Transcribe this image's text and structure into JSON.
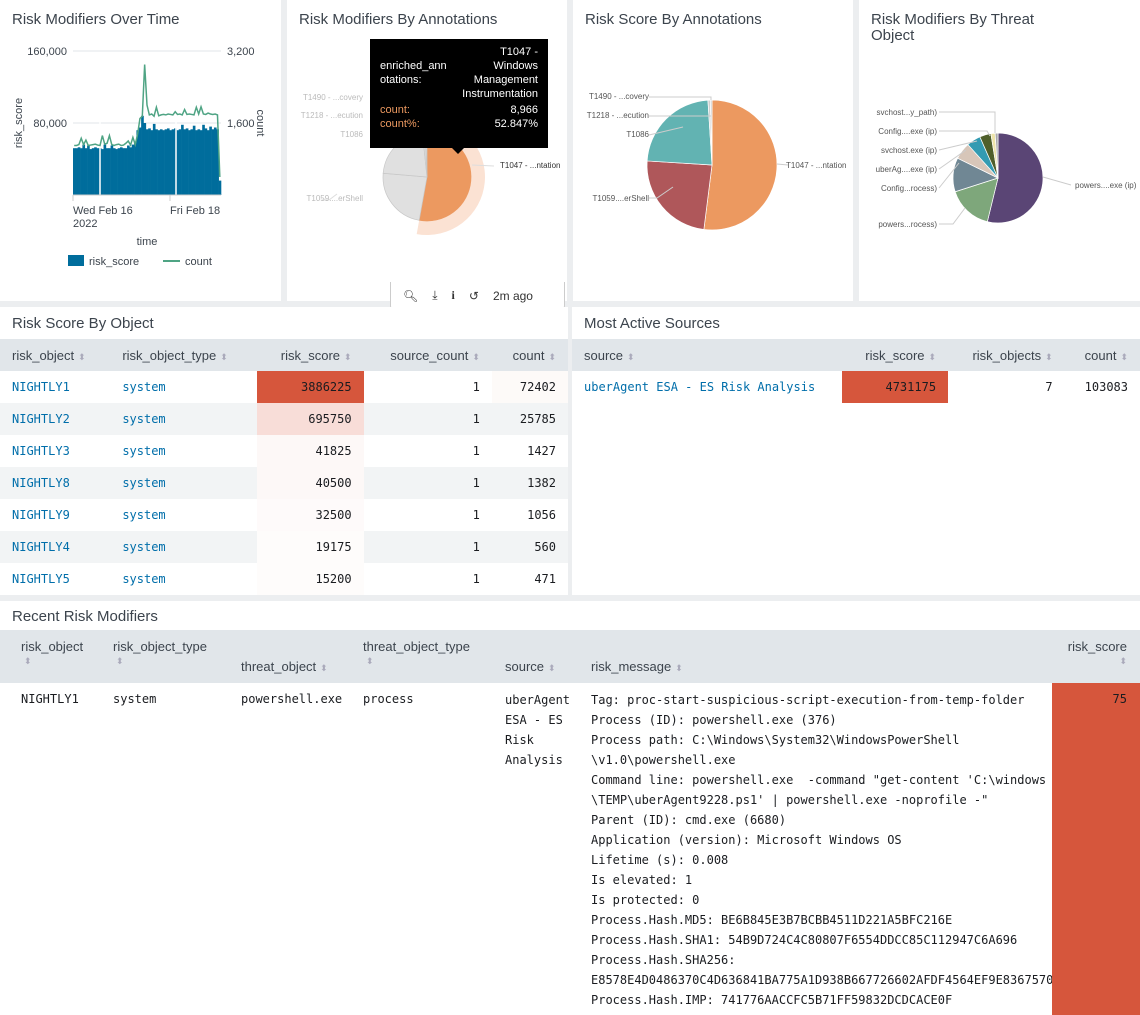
{
  "panels": {
    "p1": {
      "title": "Risk Modifiers Over Time"
    },
    "p2": {
      "title": "Risk Modifiers By Annotations"
    },
    "p3": {
      "title": "Risk Score By Annotations"
    },
    "p4": {
      "title": "Risk Modifiers By Threat Object"
    }
  },
  "chart_data": [
    {
      "type": "bar+line",
      "title": "Risk Modifiers Over Time",
      "xlabel": "time",
      "ylabel": "risk_score",
      "y2label": "count",
      "ylim": [
        0,
        160000
      ],
      "y2lim": [
        0,
        3200
      ],
      "yticks": [
        "160,000",
        "80,000"
      ],
      "y2ticks": [
        "3,200",
        "1,600"
      ],
      "xticks": [
        "Wed Feb 16",
        "2022",
        "Fri Feb 18"
      ],
      "legend": [
        "risk_score",
        "count"
      ],
      "legend_position": "bottom",
      "colors": {
        "risk_score": "#006d9c",
        "count": "#4fa484"
      },
      "series": [
        {
          "name": "risk_score",
          "values": [
            52000,
            52000,
            53000,
            52000,
            56000,
            52000,
            55000,
            51000,
            52000,
            53000,
            52000,
            52000,
            51000,
            56000,
            52000,
            52000,
            55000,
            52000,
            51000,
            52000,
            53000,
            52000,
            52000,
            55000,
            53000,
            56000,
            58000,
            72000,
            75000,
            88000,
            80000,
            73000,
            74000,
            72000,
            79000,
            73000,
            72000,
            73000,
            72000,
            73000,
            74000,
            72000,
            73000,
            74000,
            72000,
            73000,
            78000,
            73000,
            74000,
            72000,
            73000,
            77000,
            72000,
            73000,
            72000,
            78000,
            74000,
            72000,
            76000,
            73000,
            75000,
            73000,
            16000
          ]
        },
        {
          "name": "count",
          "values": [
            1100,
            1100,
            1120,
            1260,
            1120,
            1220,
            1100,
            1110,
            1120,
            1130,
            1110,
            1100,
            1320,
            1130,
            1150,
            1320,
            1120,
            1100,
            1120,
            1130,
            1100,
            1110,
            1150,
            1200,
            1110,
            1280,
            1120,
            1350,
            1700,
            1750,
            2900,
            2000,
            1780,
            1800,
            1750,
            1950,
            1760,
            1780,
            1790,
            1780,
            1800,
            1790,
            1780,
            1850,
            1790,
            1800,
            1780,
            1900,
            1790,
            1800,
            1790,
            1780,
            1950,
            1800,
            1960,
            1800,
            1790,
            1820,
            1800,
            1790,
            1800,
            1780,
            400
          ]
        }
      ]
    },
    {
      "type": "pie",
      "title": "Risk Modifiers By Annotations",
      "highlighted": "T1047 - ...ntation",
      "slices": [
        {
          "label": "T1047 - ...ntation",
          "value": 52.847
        },
        {
          "label": "T1059....erShell",
          "value": 23.5
        },
        {
          "label": "T1086",
          "value": 22
        },
        {
          "label": "T1218 - ...ecution",
          "value": 1
        },
        {
          "label": "T1490 - ...covery",
          "value": 0.65
        }
      ],
      "tooltip": {
        "field": "enriched_annotations:",
        "value": "T1047 - Windows Management Instrumentation",
        "count_label": "count:",
        "count": "8,966",
        "pct_label": "count%:",
        "pct": "52.847%"
      }
    },
    {
      "type": "pie",
      "title": "Risk Score By Annotations",
      "slices": [
        {
          "label": "T1047 - ...ntation",
          "value": 52,
          "color": "#ec9960"
        },
        {
          "label": "T1059....erShell",
          "value": 24,
          "color": "#af575a"
        },
        {
          "label": "T1086",
          "value": 23,
          "color": "#62b3b2"
        },
        {
          "label": "T1218 - ...ecution",
          "value": 0.6,
          "color": "#d0d0d0"
        },
        {
          "label": "T1490 - ...covery",
          "value": 0.4,
          "color": "#ccc"
        }
      ]
    },
    {
      "type": "pie",
      "title": "Risk Modifiers By Threat Object",
      "slices": [
        {
          "label": "powers....exe (ip)",
          "value": 53,
          "color": "#5a4575"
        },
        {
          "label": "powers...rocess)",
          "value": 16,
          "color": "#7ea77b"
        },
        {
          "label": "Config...rocess)",
          "value": 12,
          "color": "#708794"
        },
        {
          "label": "uberAg....exe (ip)",
          "value": 6,
          "color": "#d7c6b9"
        },
        {
          "label": "svchost.exe (ip)",
          "value": 5,
          "color": "#339bb2"
        },
        {
          "label": "Config....exe (ip)",
          "value": 4,
          "color": "#4f5f2a"
        },
        {
          "label": "svchost...y_path)",
          "value": 1.5,
          "color": "#ede4a9"
        },
        {
          "label": "",
          "value": 1,
          "color": "#a8a8a8"
        }
      ]
    }
  ],
  "toolbar": {
    "last_refresh": "2m ago"
  },
  "risk_by_object": {
    "title": "Risk Score By Object",
    "columns": [
      "risk_object",
      "risk_object_type",
      "risk_score",
      "source_count",
      "count"
    ],
    "rows": [
      [
        "NIGHTLY1",
        "system",
        "3886225",
        "1",
        "72402"
      ],
      [
        "NIGHTLY2",
        "system",
        "695750",
        "1",
        "25785"
      ],
      [
        "NIGHTLY3",
        "system",
        "41825",
        "1",
        "1427"
      ],
      [
        "NIGHTLY8",
        "system",
        "40500",
        "1",
        "1382"
      ],
      [
        "NIGHTLY9",
        "system",
        "32500",
        "1",
        "1056"
      ],
      [
        "NIGHTLY4",
        "system",
        "19175",
        "1",
        "560"
      ],
      [
        "NIGHTLY5",
        "system",
        "15200",
        "1",
        "471"
      ]
    ],
    "heat_colors": [
      "#d6563c",
      "#f8ddd8",
      "#fdf8f7",
      "#fdf8f7",
      "#fefafa",
      "#fefcfb",
      "#fefcfb"
    ]
  },
  "active_sources": {
    "title": "Most Active Sources",
    "columns": [
      "source",
      "risk_score",
      "risk_objects",
      "count"
    ],
    "rows": [
      [
        "uberAgent ESA - ES Risk Analysis",
        "4731175",
        "7",
        "103083"
      ]
    ]
  },
  "recent": {
    "title": "Recent Risk Modifiers",
    "columns": [
      "risk_object",
      "risk_object_type",
      "threat_object",
      "threat_object_type",
      "source",
      "risk_message",
      "risk_score"
    ],
    "row": {
      "risk_object": "NIGHTLY1",
      "risk_object_type": "system",
      "threat_object": "powershell.exe",
      "threat_object_type": "process",
      "source": [
        "uberAgent",
        "ESA - ES",
        "Risk",
        "Analysis"
      ],
      "risk_message": [
        "Tag: proc-start-suspicious-script-execution-from-temp-folder",
        "Process (ID): powershell.exe (376)",
        "Process path: C:\\Windows\\System32\\WindowsPowerShell",
        "\\v1.0\\powershell.exe",
        "Command line: powershell.exe  -command \"get-content 'C:\\windows",
        "\\TEMP\\uberAgent9228.ps1' | powershell.exe -noprofile -\"",
        "Parent (ID): cmd.exe (6680)",
        "Application (version): Microsoft Windows OS",
        "Lifetime (s): 0.008",
        "Is elevated: 1",
        "Is protected: 0",
        "Process.Hash.MD5: BE6B845E3B7BCBB4511D221A5BFC216E",
        "Process.Hash.SHA1: 54B9D724C4C80807F6554DDCC85C112947C6A696",
        "Process.Hash.SHA256:",
        "E8578E4D0486370C4D636841BA775A1D938B667726602AFDF4564EF9E8367570",
        "Process.Hash.IMP: 741776AACCFC5B71FF59832DCDCACE0F"
      ],
      "risk_score": "75"
    },
    "score_color": "#d6563c"
  }
}
